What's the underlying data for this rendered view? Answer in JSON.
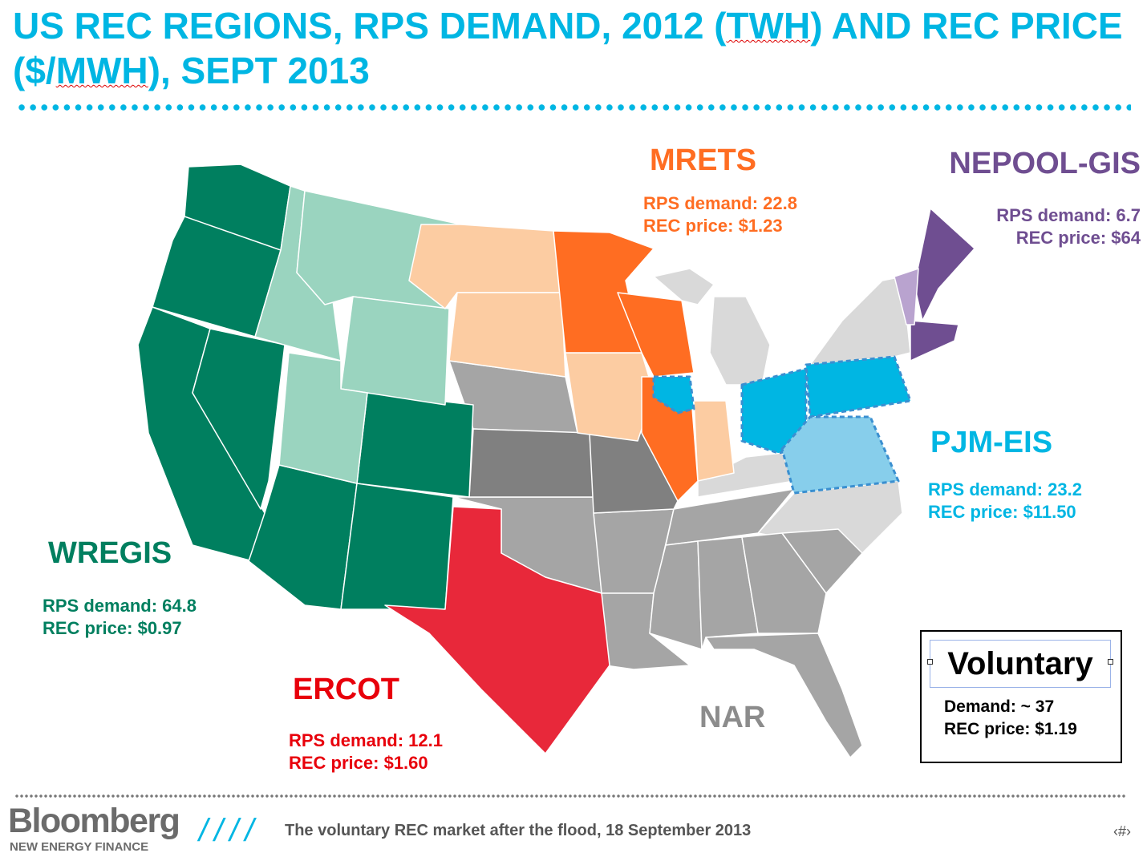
{
  "title": {
    "part1": "US REC REGIONS, RPS DEMAND, 2012 (",
    "twh": "TWH",
    "part2": ") AND REC PRICE ($/",
    "mwh": "MWH",
    "part3": "), SEPT 2013"
  },
  "regions": {
    "wregis": {
      "name": "WREGIS",
      "demand": "RPS demand: 64.8",
      "price": "REC price: $0.97",
      "color": "#007f5f"
    },
    "mrets": {
      "name": "MRETS",
      "demand": "RPS demand: 22.8",
      "price": "REC price: $1.23",
      "color": "#ff6d22"
    },
    "nepool": {
      "name": "NEPOOL-GIS",
      "demand": "RPS demand: 6.7",
      "price": "REC price: $64",
      "color": "#6f4e91"
    },
    "pjm": {
      "name": "PJM-EIS",
      "demand": "RPS demand: 23.2",
      "price": "REC price: $11.50",
      "color": "#00b6e3"
    },
    "ercot": {
      "name": "ERCOT",
      "demand": "RPS demand: 12.1",
      "price": "REC price: $1.60",
      "color": "#e8283a"
    },
    "nar": {
      "name": "NAR",
      "color": "#a5a5a5"
    }
  },
  "voluntary": {
    "title": "Voluntary",
    "demand": "Demand: ~ 37",
    "price": "REC price: $1.19"
  },
  "footer": {
    "logo": "Bloomberg",
    "logo_sub": "NEW ENERGY FINANCE",
    "slashes": "////",
    "text": "The voluntary REC market after the flood, 18 September 2013",
    "page": "‹#›"
  }
}
